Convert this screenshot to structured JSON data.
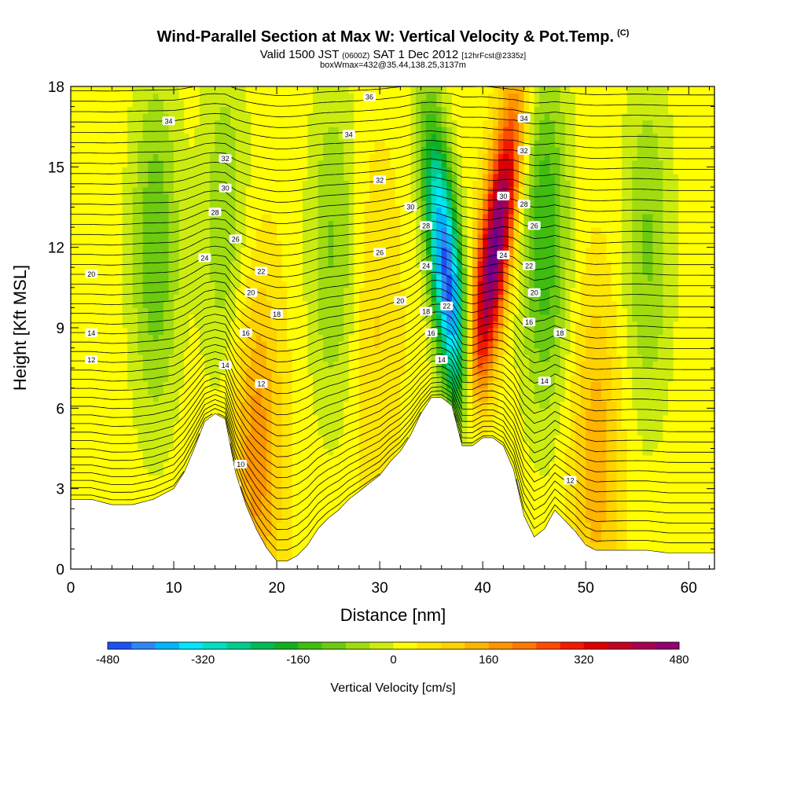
{
  "header": {
    "title": "Wind-Parallel Section at Max W: Vertical Velocity & Pot.Temp.",
    "copyright": "(C)",
    "valid_prefix": "Valid 1500 JST",
    "valid_utc": "(0600Z)",
    "valid_date": "SAT 1 Dec 2012",
    "forecast": "[12hrFcst@2335z]",
    "box_info": "boxWmax=432@35.44,138.25,3137m"
  },
  "chart_data": {
    "type": "heatmap",
    "xlabel": "Distance [nm]",
    "ylabel": "Height [Kft MSL]",
    "xlim": [
      0,
      62.5
    ],
    "ylim": [
      0,
      18
    ],
    "x_ticks": [
      0,
      10,
      20,
      30,
      40,
      50,
      60
    ],
    "y_ticks": [
      0,
      3,
      6,
      9,
      12,
      15,
      18
    ],
    "x_minor_step": 2,
    "y_minor_step": 0.75,
    "colorbar": {
      "label": "Vertical Velocity [cm/s]",
      "range": [
        -480,
        480
      ],
      "bin_width": 40,
      "tick_values": [
        -480,
        -320,
        -160,
        0,
        160,
        320,
        480
      ],
      "tick_labels": [
        "-480",
        "-320",
        "-160",
        "0",
        "160",
        "320",
        "480"
      ],
      "colors": [
        "#0000ff",
        "#1d50f5",
        "#3085f5",
        "#00b4fa",
        "#00e6ff",
        "#00e0c0",
        "#00cc90",
        "#00bb55",
        "#10b020",
        "#40bd10",
        "#6cca10",
        "#a0dc10",
        "#ccec10",
        "#ffff00",
        "#ffe600",
        "#ffd200",
        "#ffb400",
        "#ff9600",
        "#ff7800",
        "#ff4b00",
        "#f21a00",
        "#dc0000",
        "#c40022",
        "#a80050",
        "#900070",
        "#6e0090"
      ]
    },
    "terrain_top_kft": [
      [
        0,
        2.6
      ],
      [
        2,
        2.6
      ],
      [
        4,
        2.4
      ],
      [
        6,
        2.4
      ],
      [
        8,
        2.6
      ],
      [
        10,
        3.0
      ],
      [
        11,
        3.6
      ],
      [
        12,
        4.5
      ],
      [
        13,
        5.5
      ],
      [
        14,
        5.8
      ],
      [
        15,
        5.6
      ],
      [
        16,
        3.6
      ],
      [
        17,
        2.4
      ],
      [
        18,
        1.5
      ],
      [
        19,
        0.8
      ],
      [
        20,
        0.3
      ],
      [
        21,
        0.3
      ],
      [
        22,
        0.5
      ],
      [
        23,
        0.9
      ],
      [
        24,
        1.5
      ],
      [
        25,
        1.9
      ],
      [
        26,
        2.2
      ],
      [
        27,
        2.6
      ],
      [
        28,
        2.9
      ],
      [
        29,
        3.2
      ],
      [
        30,
        3.5
      ],
      [
        31,
        4.0
      ],
      [
        32,
        4.4
      ],
      [
        33,
        5.0
      ],
      [
        34,
        5.8
      ],
      [
        35,
        6.4
      ],
      [
        36,
        6.4
      ],
      [
        37,
        6.1
      ],
      [
        38,
        4.6
      ],
      [
        39,
        4.6
      ],
      [
        40,
        4.9
      ],
      [
        41,
        4.9
      ],
      [
        42,
        4.6
      ],
      [
        43,
        3.7
      ],
      [
        44,
        2.0
      ],
      [
        45,
        1.2
      ],
      [
        46,
        1.5
      ],
      [
        47,
        2.2
      ],
      [
        48,
        1.8
      ],
      [
        49,
        1.4
      ],
      [
        50,
        0.9
      ],
      [
        51,
        0.7
      ],
      [
        52,
        0.7
      ],
      [
        54,
        0.7
      ],
      [
        56,
        0.7
      ],
      [
        58,
        0.6
      ],
      [
        60,
        0.6
      ],
      [
        62.5,
        0.6
      ]
    ],
    "velocity_bands": [
      {
        "center_x": 8.2,
        "center_y": 12.0,
        "kind": "down",
        "peak_cm_s": -140
      },
      {
        "center_x": 15.0,
        "center_y": 13.0,
        "kind": "down",
        "peak_cm_s": -100
      },
      {
        "center_x": 18.0,
        "center_y": 4.5,
        "kind": "up",
        "peak_cm_s": 160
      },
      {
        "center_x": 25.5,
        "center_y": 12.0,
        "kind": "down",
        "peak_cm_s": -110
      },
      {
        "center_x": 29.5,
        "center_y": 9.0,
        "kind": "up",
        "peak_cm_s": 60
      },
      {
        "center_x": 36.5,
        "center_y": 11.0,
        "kind": "down",
        "peak_cm_s": -480
      },
      {
        "center_x": 41.2,
        "center_y": 12.0,
        "kind": "up",
        "peak_cm_s": 480
      },
      {
        "center_x": 46.0,
        "center_y": 12.5,
        "kind": "down",
        "peak_cm_s": -180
      },
      {
        "center_x": 51.0,
        "center_y": 4.0,
        "kind": "up",
        "peak_cm_s": 120
      },
      {
        "center_x": 56.0,
        "center_y": 12.0,
        "kind": "down",
        "peak_cm_s": -110
      }
    ],
    "isentrope_labels": [
      {
        "text": "36",
        "x": 29.0,
        "y": 17.6
      },
      {
        "text": "34",
        "x": 9.5,
        "y": 16.7
      },
      {
        "text": "34",
        "x": 27.0,
        "y": 16.2
      },
      {
        "text": "34",
        "x": 44.0,
        "y": 16.8
      },
      {
        "text": "32",
        "x": 15.0,
        "y": 15.3
      },
      {
        "text": "32",
        "x": 30.0,
        "y": 14.5
      },
      {
        "text": "32",
        "x": 44.0,
        "y": 15.6
      },
      {
        "text": "30",
        "x": 15.0,
        "y": 14.2
      },
      {
        "text": "30",
        "x": 33.0,
        "y": 13.5
      },
      {
        "text": "30",
        "x": 42.0,
        "y": 13.9
      },
      {
        "text": "28",
        "x": 14.0,
        "y": 13.3
      },
      {
        "text": "28",
        "x": 34.5,
        "y": 12.8
      },
      {
        "text": "28",
        "x": 44.0,
        "y": 13.6
      },
      {
        "text": "26",
        "x": 16.0,
        "y": 12.3
      },
      {
        "text": "26",
        "x": 30.0,
        "y": 11.8
      },
      {
        "text": "26",
        "x": 45.0,
        "y": 12.8
      },
      {
        "text": "24",
        "x": 13.0,
        "y": 11.6
      },
      {
        "text": "24",
        "x": 34.5,
        "y": 11.3
      },
      {
        "text": "24",
        "x": 42.0,
        "y": 11.7
      },
      {
        "text": "22",
        "x": 18.5,
        "y": 11.1
      },
      {
        "text": "22",
        "x": 36.5,
        "y": 9.8
      },
      {
        "text": "22",
        "x": 44.5,
        "y": 11.3
      },
      {
        "text": "20",
        "x": 2.0,
        "y": 11.0
      },
      {
        "text": "20",
        "x": 17.5,
        "y": 10.3
      },
      {
        "text": "20",
        "x": 32.0,
        "y": 10.0
      },
      {
        "text": "20",
        "x": 45.0,
        "y": 10.3
      },
      {
        "text": "18",
        "x": 20.0,
        "y": 9.5
      },
      {
        "text": "18",
        "x": 34.5,
        "y": 9.6
      },
      {
        "text": "18",
        "x": 47.5,
        "y": 8.8
      },
      {
        "text": "16",
        "x": 17.0,
        "y": 8.8
      },
      {
        "text": "16",
        "x": 35.0,
        "y": 8.8
      },
      {
        "text": "16",
        "x": 44.5,
        "y": 9.2
      },
      {
        "text": "14",
        "x": 2.0,
        "y": 8.8
      },
      {
        "text": "14",
        "x": 15.0,
        "y": 7.6
      },
      {
        "text": "14",
        "x": 36.0,
        "y": 7.8
      },
      {
        "text": "14",
        "x": 46.0,
        "y": 7.0
      },
      {
        "text": "12",
        "x": 2.0,
        "y": 7.8
      },
      {
        "text": "12",
        "x": 18.5,
        "y": 6.9
      },
      {
        "text": "12",
        "x": 48.5,
        "y": 3.3
      },
      {
        "text": "10",
        "x": 16.5,
        "y": 3.9
      }
    ]
  }
}
